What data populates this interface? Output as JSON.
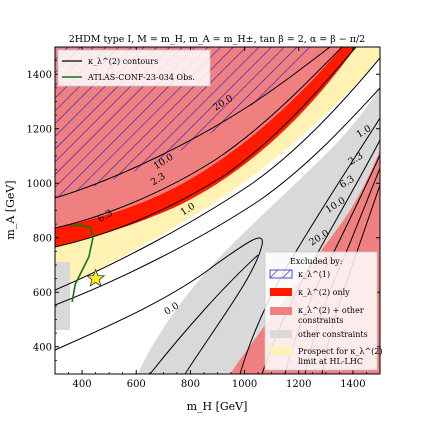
{
  "chart_data": {
    "type": "contour",
    "title": "2HDM type I, M = m_H, m_A = m_H±, tan β = 2, α = β − π/2",
    "xlabel": "m_H [GeV]",
    "ylabel": "m_A [GeV]",
    "xlim": [
      300,
      1500
    ],
    "ylim": [
      300,
      1500
    ],
    "xticks": [
      400,
      600,
      800,
      1000,
      1200,
      1400
    ],
    "yticks": [
      400,
      600,
      800,
      1000,
      1200,
      1400
    ],
    "grid": false,
    "colors": {
      "excluded_red": "#f08080",
      "kappa_only_red": "#ff1a00",
      "other_gray": "#d9d9d9",
      "prospect_yellow": "#fff2b3",
      "hatch_blue": "#2222cc",
      "contour_black": "#000000",
      "atlas_green": "#117711",
      "benchmark_star": "#ffee22"
    },
    "contour_labels": [
      {
        "text": "20.0",
        "x": 920,
        "y": 1295
      },
      {
        "text": "10.0",
        "x": 700,
        "y": 1080
      },
      {
        "text": "6.3",
        "x": 485,
        "y": 880
      },
      {
        "text": "2.3",
        "x": 680,
        "y": 1015
      },
      {
        "text": "1.0",
        "x": 790,
        "y": 905
      },
      {
        "text": "0.0",
        "x": 730,
        "y": 540
      },
      {
        "text": "1.0",
        "x": 1440,
        "y": 1190
      },
      {
        "text": "2.3",
        "x": 1410,
        "y": 1090
      },
      {
        "text": "6.3",
        "x": 1378,
        "y": 1005
      },
      {
        "text": "10.0",
        "x": 1335,
        "y": 920
      },
      {
        "text": "20.0",
        "x": 1275,
        "y": 800
      }
    ],
    "atlas_curve": [
      {
        "x": 355,
        "y": 845
      },
      {
        "x": 395,
        "y": 845
      },
      {
        "x": 430,
        "y": 840
      },
      {
        "x": 440,
        "y": 800
      },
      {
        "x": 425,
        "y": 730
      },
      {
        "x": 400,
        "y": 680
      },
      {
        "x": 375,
        "y": 630
      },
      {
        "x": 363,
        "y": 565
      }
    ],
    "benchmark_point": {
      "x": 450,
      "y": 650
    },
    "legend_top": {
      "position": "top-left",
      "entries": [
        {
          "label": "κ_λ^(2) contours",
          "style": "line-black"
        },
        {
          "label": "ATLAS-CONF-23-034 Obs.",
          "style": "line-green"
        }
      ]
    },
    "legend_bottom": {
      "position": "bottom-right",
      "title": "Excluded by:",
      "entries": [
        {
          "label": "κ_λ^(1)",
          "style": "hatch"
        },
        {
          "label": "κ_λ^(2) only",
          "style": "red"
        },
        {
          "label": "κ_λ^(2) + other",
          "style": "lightred"
        },
        {
          "label": "constraints",
          "style": "none"
        },
        {
          "label": "other constraints",
          "style": "gray"
        },
        {
          "label": "Prospect for κ_λ^(2)",
          "style": "yellow"
        },
        {
          "label": "limit at HL-LHC",
          "style": "none"
        }
      ]
    }
  }
}
